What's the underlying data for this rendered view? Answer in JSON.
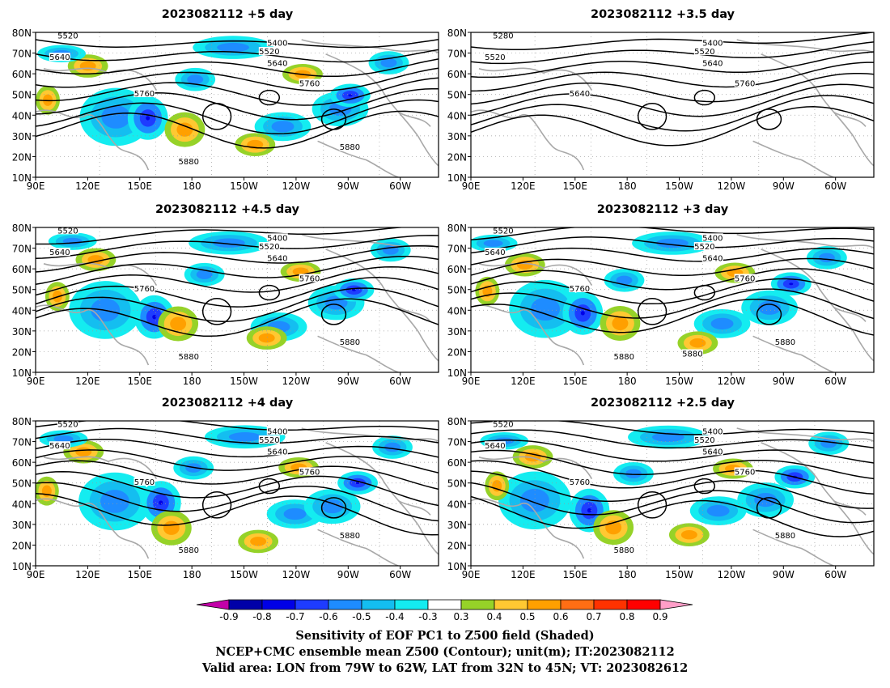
{
  "panels": [
    {
      "id": "p5",
      "title": "2023082112 +5 day",
      "contour_labels": [
        "5520",
        "5400",
        "5520",
        "5640",
        "5640",
        "5760",
        "5760",
        "5880",
        "5880"
      ]
    },
    {
      "id": "p3_5",
      "title": "2023082112 +3.5 day",
      "contour_labels": [
        "5280",
        "5400",
        "5520",
        "5520",
        "5640",
        "5640",
        "5760"
      ]
    },
    {
      "id": "p4_5",
      "title": "2023082112 +4.5 day",
      "contour_labels": [
        "5520",
        "5400",
        "5520",
        "5640",
        "5640",
        "5760",
        "5760",
        "5880",
        "5880"
      ]
    },
    {
      "id": "p3",
      "title": "2023082112 +3 day",
      "contour_labels": [
        "5520",
        "5400",
        "5520",
        "5640",
        "5640",
        "5760",
        "5760",
        "5880",
        "5880",
        "5880"
      ]
    },
    {
      "id": "p4",
      "title": "2023082112 +4 day",
      "contour_labels": [
        "5520",
        "5400",
        "5520",
        "5640",
        "5640",
        "5760",
        "5760",
        "5880",
        "5880"
      ]
    },
    {
      "id": "p2_5",
      "title": "2023082112 +2.5 day",
      "contour_labels": [
        "5520",
        "5400",
        "5520",
        "5640",
        "5640",
        "5760",
        "5760",
        "5880",
        "5880"
      ]
    }
  ],
  "axes": {
    "lon_ticks": [
      "90E",
      "120E",
      "150E",
      "180",
      "150W",
      "120W",
      "90W",
      "60W"
    ],
    "lat_ticks": [
      "80N",
      "70N",
      "60N",
      "50N",
      "40N",
      "30N",
      "20N",
      "10N"
    ]
  },
  "colorbar": {
    "labels": [
      "-0.9",
      "-0.8",
      "-0.7",
      "-0.6",
      "-0.5",
      "-0.4",
      "-0.3",
      "0.3",
      "0.4",
      "0.5",
      "0.6",
      "0.7",
      "0.8",
      "0.9"
    ],
    "colors": [
      "#c300a8",
      "#0000a8",
      "#0000e6",
      "#1e3cff",
      "#1e8cff",
      "#14bef0",
      "#14ecf0",
      "#ffffff",
      "#96d228",
      "#ffc832",
      "#ffa000",
      "#ff6e14",
      "#ff3200",
      "#ff0000",
      "#ff9ec8"
    ]
  },
  "captions": {
    "line1": "Sensitivity of EOF PC1 to Z500 field (Shaded)",
    "line2": "NCEP+CMC ensemble mean Z500 (Contour); unit(m); IT:2023082112",
    "line3": "Valid area: LON from 79W to 62W, LAT from 32N to 45N; VT: 2023082612"
  },
  "style": {
    "land_outline_color": "#a8a8a8",
    "contour_color": "#000000",
    "grid_color": "#999999"
  }
}
